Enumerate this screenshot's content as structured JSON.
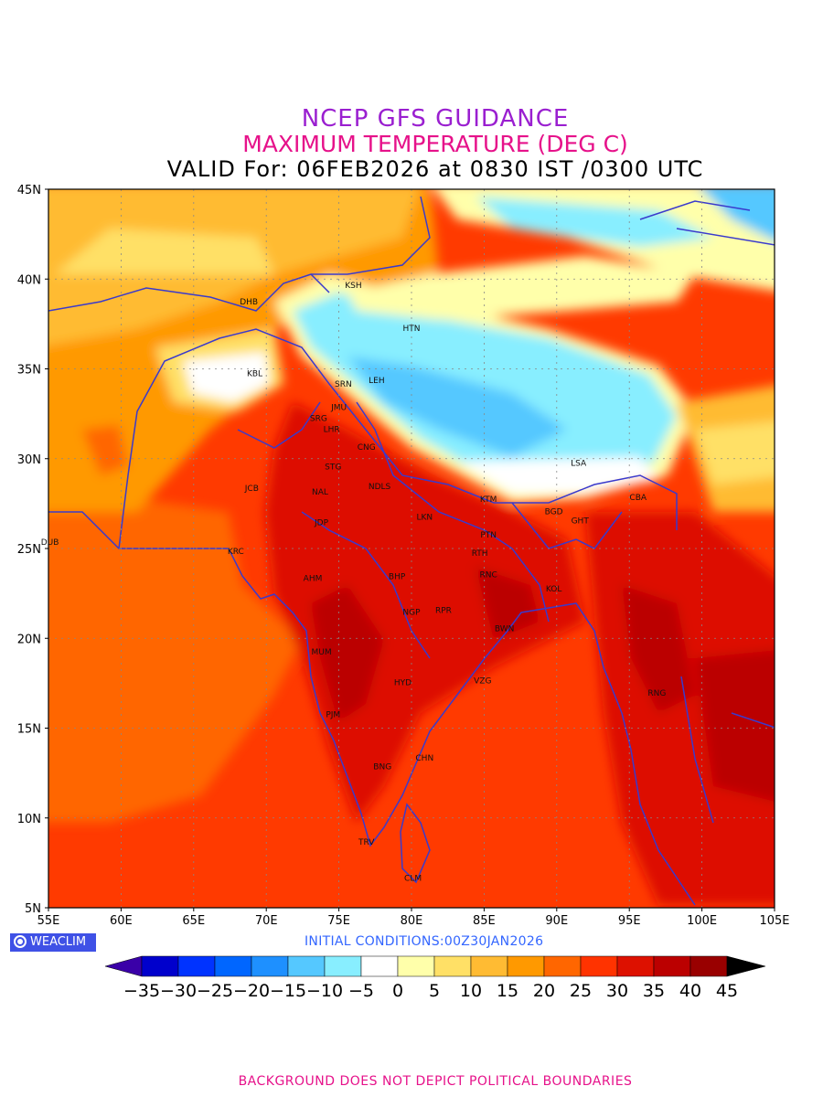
{
  "titles": {
    "model": "NCEP GFS GUIDANCE",
    "parameter": "MAXIMUM TEMPERATURE (DEG C)",
    "valid": "VALID For: 06FEB2026 at 0830 IST /0300 UTC"
  },
  "axes": {
    "lat_labels": [
      "45N",
      "40N",
      "35N",
      "30N",
      "25N",
      "20N",
      "15N",
      "10N",
      "5N"
    ],
    "lon_labels": [
      "55E",
      "60E",
      "65E",
      "70E",
      "75E",
      "80E",
      "85E",
      "90E",
      "95E",
      "100E",
      "105E"
    ],
    "lon_range": [
      55,
      105
    ],
    "lat_range": [
      5,
      45
    ],
    "grid": true
  },
  "cities": [
    {
      "code": "KSH",
      "lon": 76.0,
      "lat": 39.5
    },
    {
      "code": "DHB",
      "lon": 68.8,
      "lat": 38.6
    },
    {
      "code": "HTN",
      "lon": 80.0,
      "lat": 37.1
    },
    {
      "code": "KBL",
      "lon": 69.2,
      "lat": 34.6
    },
    {
      "code": "SRN",
      "lon": 75.3,
      "lat": 34.0
    },
    {
      "code": "LEH",
      "lon": 77.6,
      "lat": 34.2
    },
    {
      "code": "JMU",
      "lon": 75.0,
      "lat": 32.7
    },
    {
      "code": "SRG",
      "lon": 73.6,
      "lat": 32.1
    },
    {
      "code": "LHR",
      "lon": 74.5,
      "lat": 31.5
    },
    {
      "code": "CNG",
      "lon": 76.9,
      "lat": 30.5
    },
    {
      "code": "STG",
      "lon": 74.6,
      "lat": 29.4
    },
    {
      "code": "LSA",
      "lon": 91.5,
      "lat": 29.6
    },
    {
      "code": "JCB",
      "lon": 69.0,
      "lat": 28.2
    },
    {
      "code": "NAL",
      "lon": 73.7,
      "lat": 28.0
    },
    {
      "code": "NDLS",
      "lon": 77.8,
      "lat": 28.3
    },
    {
      "code": "KTM",
      "lon": 85.3,
      "lat": 27.6
    },
    {
      "code": "CBA",
      "lon": 95.6,
      "lat": 27.7
    },
    {
      "code": "BGD",
      "lon": 89.8,
      "lat": 26.9
    },
    {
      "code": "GHT",
      "lon": 91.6,
      "lat": 26.4
    },
    {
      "code": "JDP",
      "lon": 73.8,
      "lat": 26.3
    },
    {
      "code": "LKN",
      "lon": 80.9,
      "lat": 26.6
    },
    {
      "code": "PTN",
      "lon": 85.3,
      "lat": 25.6
    },
    {
      "code": "DUB",
      "lon": 55.1,
      "lat": 25.2
    },
    {
      "code": "KRC",
      "lon": 67.9,
      "lat": 24.7
    },
    {
      "code": "RTH",
      "lon": 84.7,
      "lat": 24.6
    },
    {
      "code": "BHP",
      "lon": 79.0,
      "lat": 23.3
    },
    {
      "code": "AHM",
      "lon": 73.2,
      "lat": 23.2
    },
    {
      "code": "RNC",
      "lon": 85.3,
      "lat": 23.4
    },
    {
      "code": "KOL",
      "lon": 89.8,
      "lat": 22.6
    },
    {
      "code": "NGP",
      "lon": 80.0,
      "lat": 21.3
    },
    {
      "code": "RPR",
      "lon": 82.2,
      "lat": 21.4
    },
    {
      "code": "BWN",
      "lon": 86.4,
      "lat": 20.4
    },
    {
      "code": "MUM",
      "lon": 73.8,
      "lat": 19.1
    },
    {
      "code": "HYD",
      "lon": 79.4,
      "lat": 17.4
    },
    {
      "code": "VZG",
      "lon": 84.9,
      "lat": 17.5
    },
    {
      "code": "RNG",
      "lon": 96.9,
      "lat": 16.8
    },
    {
      "code": "PJM",
      "lon": 74.6,
      "lat": 15.6
    },
    {
      "code": "CHN",
      "lon": 80.9,
      "lat": 13.2
    },
    {
      "code": "BNG",
      "lon": 78.0,
      "lat": 12.7
    },
    {
      "code": "TRV",
      "lon": 76.9,
      "lat": 8.5
    },
    {
      "code": "CLM",
      "lon": 80.1,
      "lat": 6.5
    }
  ],
  "colorbar": {
    "labels": [
      "-35",
      "-30",
      "-25",
      "-20",
      "-15",
      "-10",
      "-5",
      "0",
      "5",
      "10",
      "15",
      "20",
      "25",
      "30",
      "35",
      "40",
      "45"
    ],
    "colors": [
      "#3a00a8",
      "#0000cc",
      "#0033ff",
      "#0066ff",
      "#1e90ff",
      "#55c8ff",
      "#88eeff",
      "#ffffff",
      "#ffffaa",
      "#ffe066",
      "#ffbb33",
      "#ff9900",
      "#ff6600",
      "#ff3300",
      "#dd1100",
      "#bb0000",
      "#990000",
      "#000000"
    ]
  },
  "brand": "WEACLIM",
  "initial_conditions": "INITIAL CONDITIONS:00Z30JAN2026",
  "footer": "BACKGROUND DOES NOT DEPICT POLITICAL BOUNDARIES"
}
